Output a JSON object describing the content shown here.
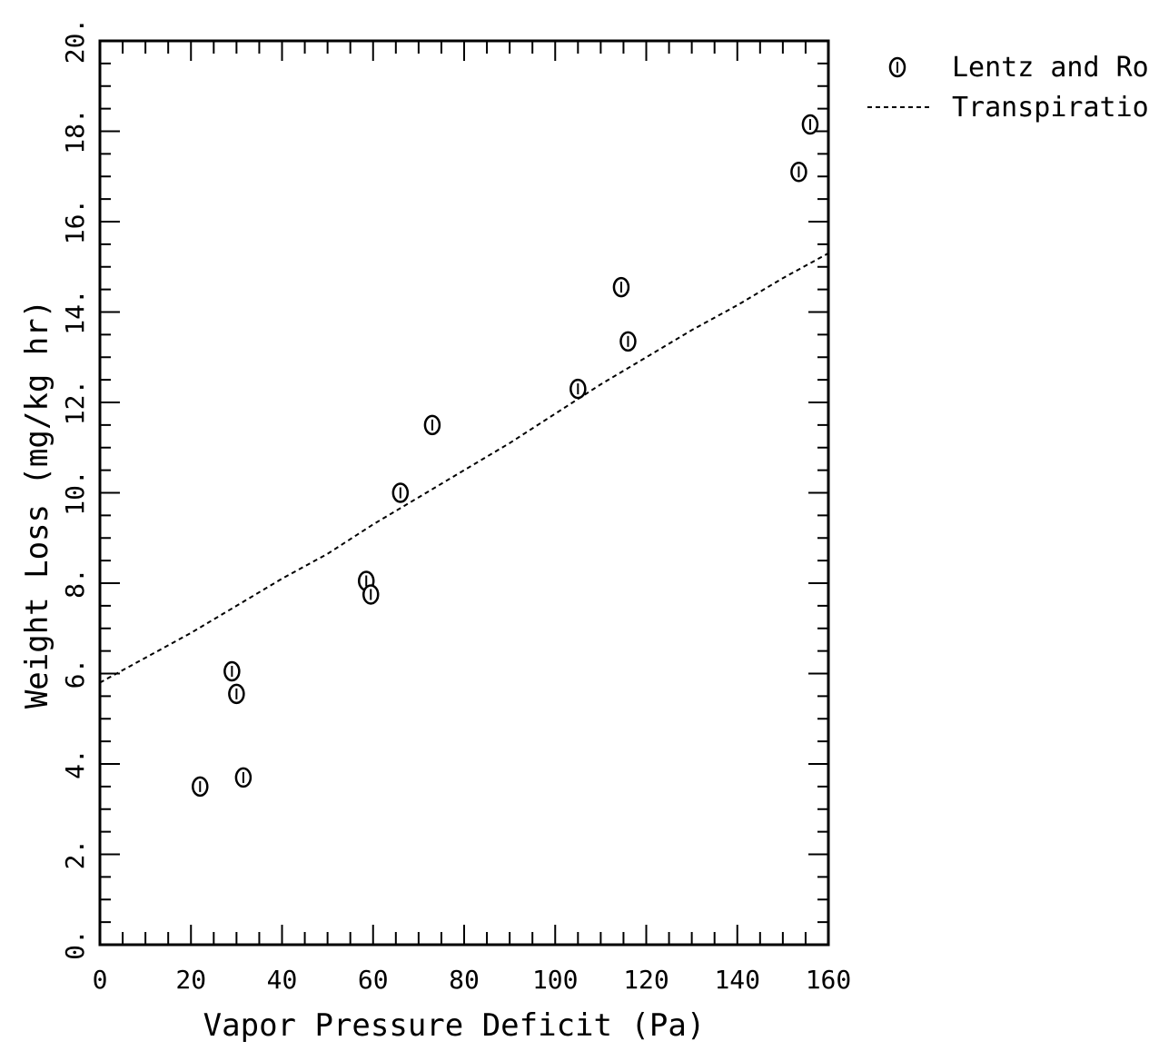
{
  "chart_data": {
    "type": "scatter",
    "title": "",
    "xlabel": "Vapor Pressure Deficit (Pa)",
    "ylabel": "Weight Loss (mg/kg hr)",
    "xlim": [
      0,
      160
    ],
    "ylim": [
      0,
      20
    ],
    "x_ticks": [
      "0",
      "20",
      "40",
      "60",
      "80",
      "100",
      "120",
      "140",
      "160"
    ],
    "y_ticks": [
      "0.",
      "2.",
      "4.",
      "6.",
      "8.",
      "10.",
      "12.",
      "14.",
      "16.",
      "18.",
      "20."
    ],
    "grid": false,
    "legend_position": "top-right-outside",
    "series": [
      {
        "name": "Lentz and Roo",
        "style": "markers",
        "marker": "circle-with-bar",
        "color": "#000000",
        "points": [
          [
            22.0,
            3.5
          ],
          [
            29.0,
            6.05
          ],
          [
            30.0,
            5.55
          ],
          [
            31.5,
            3.7
          ],
          [
            58.5,
            8.05
          ],
          [
            59.5,
            7.75
          ],
          [
            66.0,
            10.0
          ],
          [
            73.0,
            11.5
          ],
          [
            105.0,
            12.3
          ],
          [
            114.5,
            14.55
          ],
          [
            116.0,
            13.35
          ],
          [
            153.5,
            17.1
          ],
          [
            156.0,
            18.15
          ]
        ]
      },
      {
        "name": "Transpiration",
        "style": "dashed-line",
        "color": "#000000",
        "points": [
          [
            0,
            5.8
          ],
          [
            10,
            6.35
          ],
          [
            20,
            6.9
          ],
          [
            30,
            7.5
          ],
          [
            40,
            8.1
          ],
          [
            50,
            8.65
          ],
          [
            60,
            9.3
          ],
          [
            70,
            9.9
          ],
          [
            80,
            10.5
          ],
          [
            90,
            11.1
          ],
          [
            100,
            11.75
          ],
          [
            110,
            12.4
          ],
          [
            120,
            13.0
          ],
          [
            130,
            13.6
          ],
          [
            140,
            14.15
          ],
          [
            150,
            14.75
          ],
          [
            160,
            15.3
          ]
        ]
      }
    ]
  }
}
